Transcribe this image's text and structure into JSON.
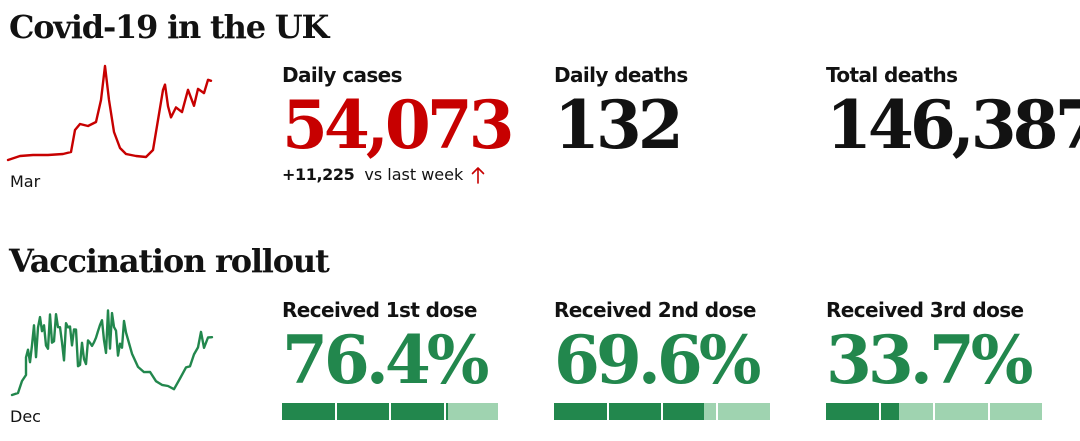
{
  "covid": {
    "title": "Covid-19 in the UK",
    "sparkline_label": "Mar",
    "sparkline_color": "#c70000",
    "stats": {
      "daily_cases": {
        "label": "Daily cases",
        "value": "54,073",
        "color": "#c70000"
      },
      "daily_deaths": {
        "label": "Daily deaths",
        "value": "132"
      },
      "total_deaths": {
        "label": "Total deaths",
        "value": "146,387"
      }
    },
    "change": {
      "value": "+11,225",
      "text": "vs last week",
      "direction": "up",
      "icon": "arrow-up-icon"
    }
  },
  "vaccination": {
    "title": "Vaccination rollout",
    "sparkline_label": "Dec",
    "sparkline_color": "#22874d",
    "bar_colors": {
      "filled": "#22874d",
      "empty": "#9fd3b0"
    },
    "doses": [
      {
        "label": "Received 1st dose",
        "value": "76.4%",
        "fraction": 0.764
      },
      {
        "label": "Received 2nd dose",
        "value": "69.6%",
        "fraction": 0.696
      },
      {
        "label": "Received 3rd dose",
        "value": "33.7%",
        "fraction": 0.337
      }
    ]
  }
}
